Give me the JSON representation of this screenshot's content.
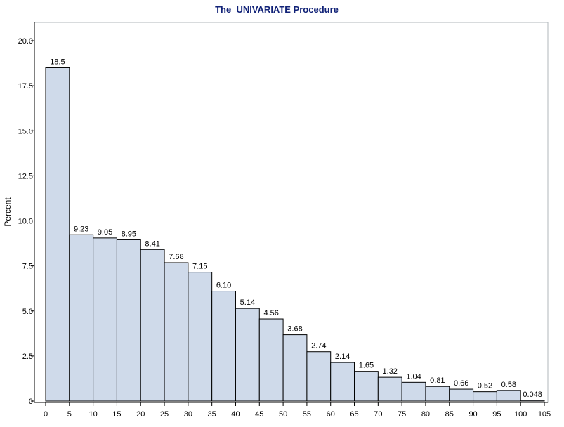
{
  "chart_data": {
    "type": "bar",
    "title": "The  UNIVARIATE Procedure",
    "xlabel": "",
    "ylabel": "Percent",
    "bin_edges": [
      0,
      5,
      10,
      15,
      20,
      25,
      30,
      35,
      40,
      45,
      50,
      55,
      60,
      65,
      70,
      75,
      80,
      85,
      90,
      95,
      100,
      105
    ],
    "values": [
      18.5,
      9.23,
      9.05,
      8.95,
      8.41,
      7.68,
      7.15,
      6.1,
      5.14,
      4.56,
      3.68,
      2.74,
      2.14,
      1.65,
      1.32,
      1.04,
      0.81,
      0.66,
      0.52,
      0.58,
      0.048
    ],
    "value_labels": [
      "18.5",
      "9.23",
      "9.05",
      "8.95",
      "8.41",
      "7.68",
      "7.15",
      "6.10",
      "5.14",
      "4.56",
      "3.68",
      "2.74",
      "2.14",
      "1.65",
      "1.32",
      "1.04",
      "0.81",
      "0.66",
      "0.52",
      "0.58",
      "0.048"
    ],
    "xticks": [
      "0",
      "5",
      "10",
      "15",
      "20",
      "25",
      "30",
      "35",
      "40",
      "45",
      "50",
      "55",
      "60",
      "65",
      "70",
      "75",
      "80",
      "85",
      "90",
      "95",
      "100",
      "105"
    ],
    "yticks": [
      "0",
      "2.5",
      "5.0",
      "7.5",
      "10.0",
      "12.5",
      "15.0",
      "17.5",
      "20.0"
    ],
    "ylim": [
      0,
      20
    ],
    "xlim": [
      0,
      105
    ],
    "grid": false,
    "colors": {
      "bar_fill": "#CFDAEA",
      "bar_stroke": "#000000",
      "title": "#112277",
      "frame": "#B0B7BB"
    }
  }
}
